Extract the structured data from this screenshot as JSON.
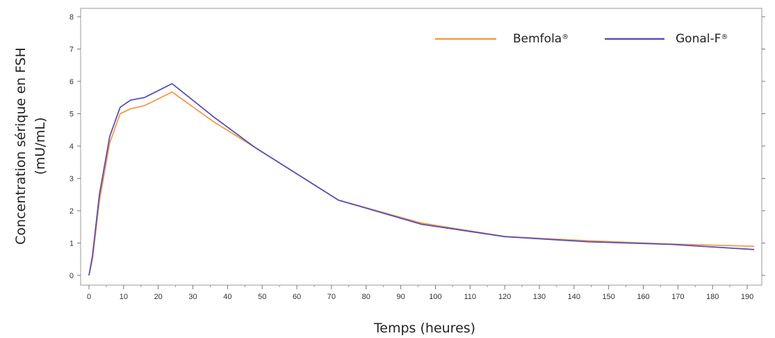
{
  "chart_data": {
    "type": "line",
    "xlabel": "Temps (heures)",
    "ylabel_line1": "Concentration sérique en FSH",
    "ylabel_line2": "(mU/mL)",
    "xlim": [
      0,
      192
    ],
    "ylim": [
      0,
      8
    ],
    "x_ticks": [
      0,
      10,
      20,
      30,
      40,
      50,
      60,
      70,
      80,
      90,
      100,
      110,
      120,
      130,
      140,
      150,
      160,
      170,
      180,
      190
    ],
    "y_ticks": [
      0,
      1,
      2,
      3,
      4,
      5,
      6,
      7,
      8
    ],
    "grid": false,
    "legend_position": "top-right",
    "series": [
      {
        "name": "Bemfola",
        "name_sup": "®",
        "color": "#F39A4A",
        "x": [
          0,
          1,
          3,
          6,
          9,
          12,
          16,
          24,
          36,
          48,
          72,
          96,
          120,
          144,
          168,
          192
        ],
        "y": [
          0,
          0.5,
          2.3,
          4.1,
          5.0,
          5.15,
          5.25,
          5.67,
          4.75,
          3.95,
          2.33,
          1.62,
          1.2,
          1.07,
          0.97,
          0.9
        ]
      },
      {
        "name": "Gonal-F",
        "name_sup": "®",
        "color": "#5B4FB5",
        "x": [
          0,
          1,
          3,
          6,
          9,
          12,
          16,
          24,
          36,
          48,
          72,
          96,
          120,
          144,
          168,
          192
        ],
        "y": [
          0,
          0.6,
          2.5,
          4.3,
          5.2,
          5.42,
          5.5,
          5.93,
          4.9,
          3.95,
          2.33,
          1.58,
          1.2,
          1.04,
          0.96,
          0.8
        ]
      }
    ]
  }
}
